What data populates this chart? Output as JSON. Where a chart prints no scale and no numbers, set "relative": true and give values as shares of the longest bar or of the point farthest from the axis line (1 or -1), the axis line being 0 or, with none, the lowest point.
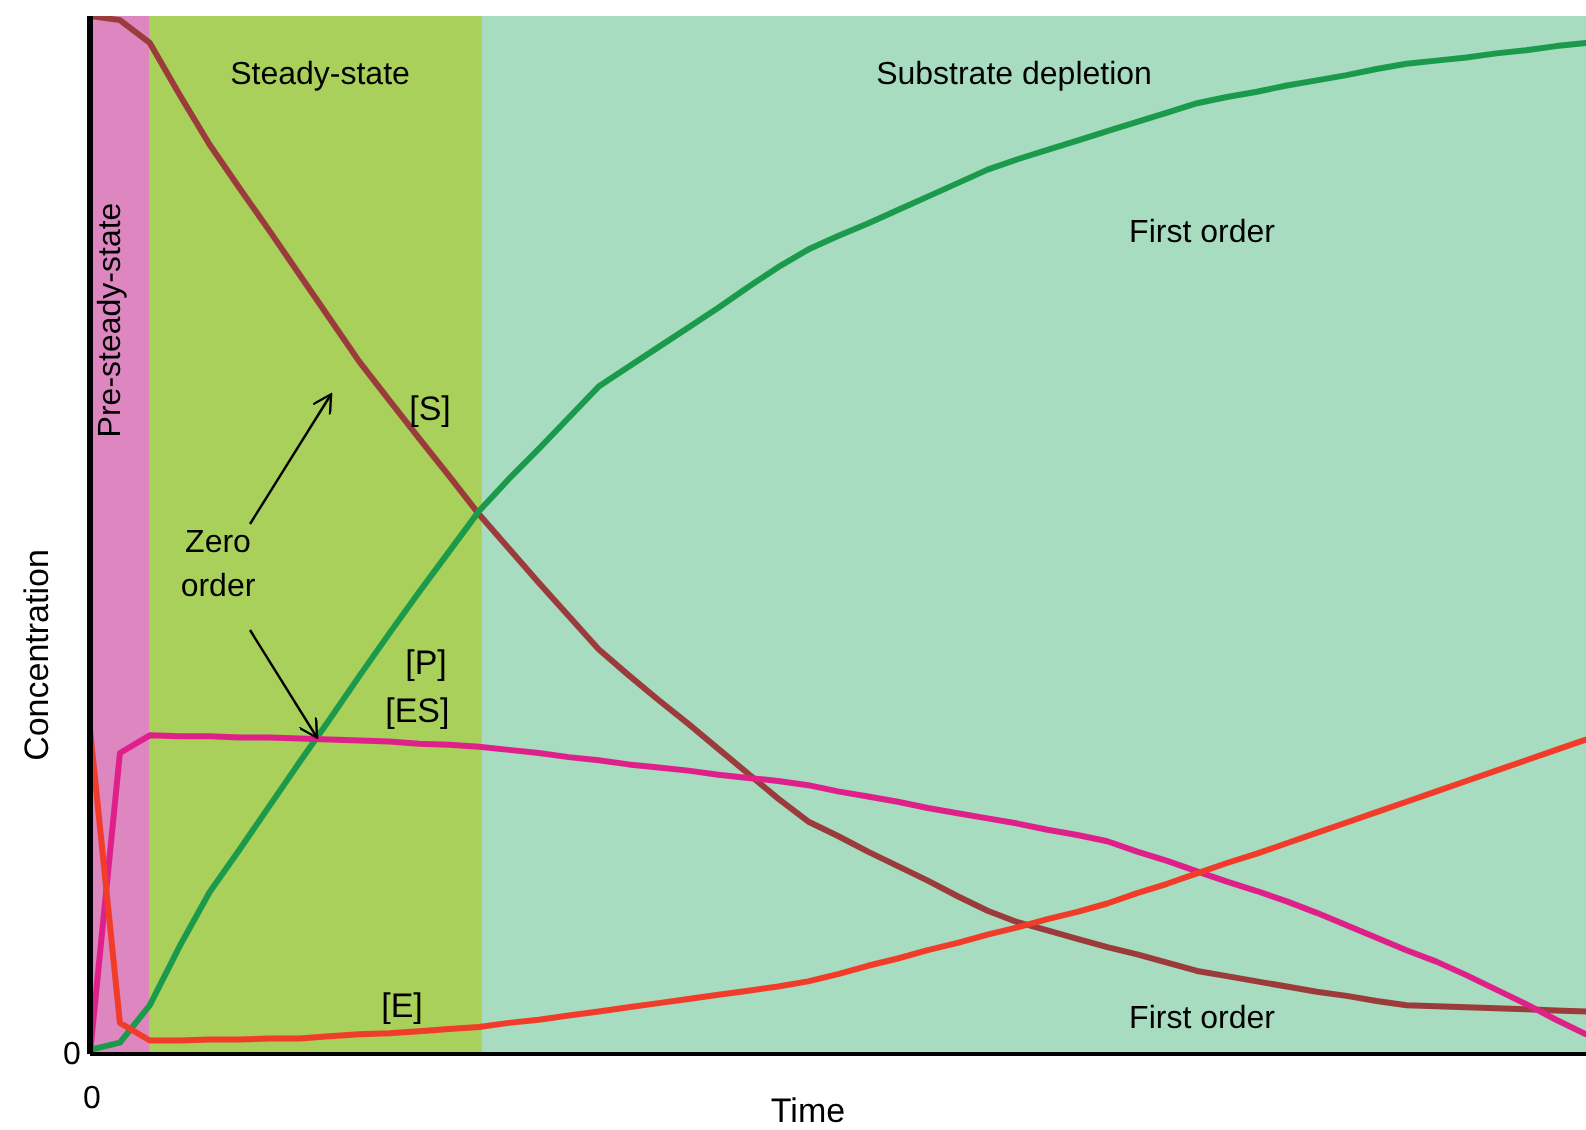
{
  "chart_data": {
    "type": "line",
    "relative": true,
    "xlabel": "Time",
    "ylabel": "Concentration",
    "marker": "none",
    "line_style": "solid",
    "grid": false,
    "legend": false,
    "categories": [
      null,
      null,
      null,
      null,
      null,
      null,
      null,
      null,
      null,
      null,
      null,
      null,
      null,
      null,
      null,
      null,
      null,
      null,
      null,
      null,
      null,
      null,
      null,
      null,
      null,
      null,
      null,
      null,
      null,
      null,
      null,
      null,
      null,
      null,
      null,
      null,
      null,
      null,
      null,
      null,
      null,
      null,
      null,
      null,
      null,
      null,
      null,
      null,
      null,
      null,
      null
    ],
    "series": [
      {
        "name": "[S]",
        "color": "#9b3b3b",
        "values": [
          1,
          0.996,
          0.974,
          0.924,
          0.876,
          0.834,
          0.793,
          0.751,
          0.709,
          0.667,
          0.63,
          0.593,
          0.557,
          0.52,
          0.487,
          0.454,
          0.422,
          0.39,
          0.365,
          0.341,
          0.318,
          0.294,
          0.27,
          0.246,
          0.224,
          0.21,
          0.195,
          0.181,
          0.167,
          0.152,
          0.138,
          0.127,
          0.119,
          0.111,
          0.103,
          0.096,
          0.088,
          0.08,
          0.075,
          0.07,
          0.065,
          0.06,
          0.056,
          0.051,
          0.047,
          0.046,
          0.045,
          0.044,
          0.043,
          0.042,
          0.041
        ]
      },
      {
        "name": "[P]",
        "color": "#1a9a4a",
        "values": [
          0.004,
          0.011,
          0.047,
          0.104,
          0.156,
          0.197,
          0.239,
          0.281,
          0.322,
          0.364,
          0.405,
          0.445,
          0.484,
          0.523,
          0.554,
          0.583,
          0.613,
          0.643,
          0.662,
          0.681,
          0.7,
          0.719,
          0.739,
          0.758,
          0.775,
          0.788,
          0.8,
          0.813,
          0.826,
          0.839,
          0.852,
          0.862,
          0.871,
          0.88,
          0.889,
          0.898,
          0.907,
          0.916,
          0.922,
          0.927,
          0.933,
          0.938,
          0.943,
          0.949,
          0.954,
          0.957,
          0.96,
          0.964,
          0.967,
          0.971,
          0.974
        ]
      },
      {
        "name": "[ES]",
        "color": "#e0208a",
        "values": [
          0,
          0.29,
          0.307,
          0.306,
          0.306,
          0.305,
          0.305,
          0.304,
          0.303,
          0.302,
          0.301,
          0.299,
          0.298,
          0.296,
          0.293,
          0.29,
          0.286,
          0.283,
          0.279,
          0.276,
          0.273,
          0.269,
          0.266,
          0.263,
          0.259,
          0.253,
          0.248,
          0.243,
          0.237,
          0.232,
          0.227,
          0.222,
          0.216,
          0.211,
          0.205,
          0.195,
          0.186,
          0.176,
          0.166,
          0.157,
          0.147,
          0.136,
          0.124,
          0.112,
          0.1,
          0.089,
          0.076,
          0.062,
          0.048,
          0.033,
          0.019
        ]
      },
      {
        "name": "[E]",
        "color": "#f03c28",
        "values": [
          0.313,
          0.03,
          0.013,
          0.013,
          0.014,
          0.014,
          0.015,
          0.015,
          0.017,
          0.019,
          0.02,
          0.022,
          0.024,
          0.026,
          0.03,
          0.033,
          0.037,
          0.041,
          0.045,
          0.049,
          0.053,
          0.057,
          0.061,
          0.065,
          0.07,
          0.077,
          0.085,
          0.092,
          0.1,
          0.107,
          0.115,
          0.122,
          0.13,
          0.137,
          0.145,
          0.155,
          0.164,
          0.174,
          0.184,
          0.193,
          0.203,
          0.213,
          0.223,
          0.233,
          0.243,
          0.253,
          0.263,
          0.273,
          0.283,
          0.293,
          0.303
        ]
      }
    ],
    "annotations": [
      "Pre-steady-state",
      "Steady-state",
      "Substrate depletion",
      "Zero order",
      "0",
      "0",
      "First order",
      "First order"
    ]
  }
}
